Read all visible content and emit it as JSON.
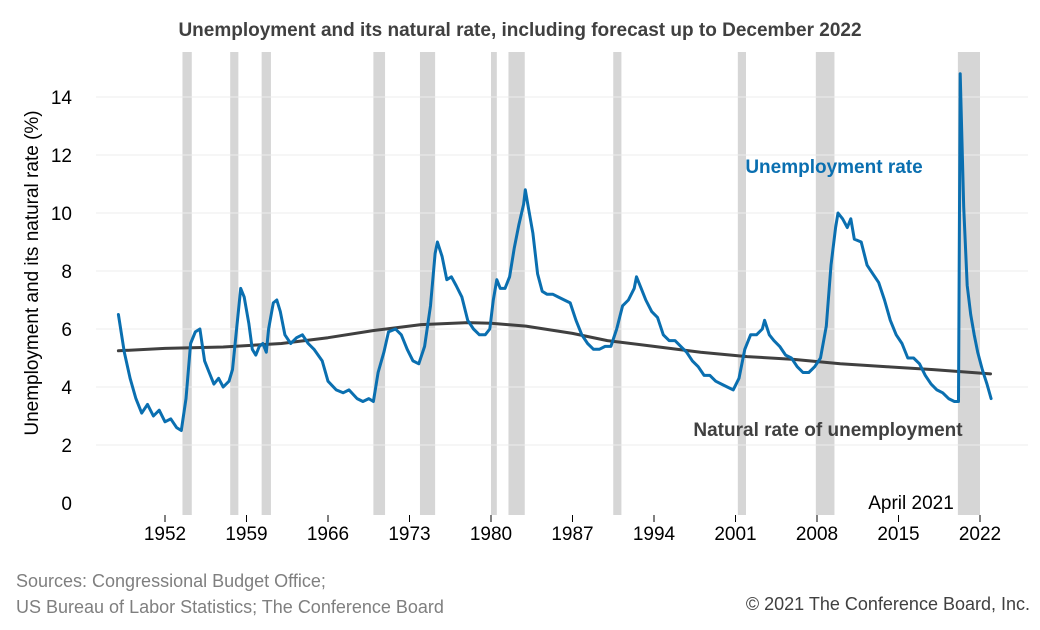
{
  "chart_data": {
    "type": "line",
    "title": "Unemployment and its natural rate, including forecast up to December 2022",
    "ylabel": "Unemployment and its natural rate (%)",
    "xlabel": "",
    "xlim": [
      1946.5,
      2024.5
    ],
    "ylim": [
      0,
      15
    ],
    "x_ticks": [
      1952,
      1959,
      1966,
      1973,
      1980,
      1987,
      1994,
      2001,
      2008,
      2015,
      2022
    ],
    "y_ticks": [
      0,
      2,
      4,
      6,
      8,
      10,
      12,
      14
    ],
    "grid": "horizontal",
    "recessions": [
      [
        1953.5,
        1954.3
      ],
      [
        1957.6,
        1958.3
      ],
      [
        1960.3,
        1961.1
      ],
      [
        1969.9,
        1970.9
      ],
      [
        1973.9,
        1975.2
      ],
      [
        1980.0,
        1980.5
      ],
      [
        1981.5,
        1982.9
      ],
      [
        1990.5,
        1991.2
      ],
      [
        2001.2,
        2001.9
      ],
      [
        2007.9,
        2009.5
      ],
      [
        2020.1,
        2022.0
      ]
    ],
    "series": [
      {
        "name": "Unemployment rate",
        "color": "#0a6fb0",
        "points": [
          [
            1948.0,
            6.5
          ],
          [
            1948.5,
            5.2
          ],
          [
            1949.0,
            4.3
          ],
          [
            1949.5,
            3.6
          ],
          [
            1950.0,
            3.1
          ],
          [
            1950.5,
            3.4
          ],
          [
            1951.0,
            3.0
          ],
          [
            1951.5,
            3.2
          ],
          [
            1952.0,
            2.8
          ],
          [
            1952.5,
            2.9
          ],
          [
            1953.0,
            2.6
          ],
          [
            1953.4,
            2.5
          ],
          [
            1953.8,
            3.6
          ],
          [
            1954.2,
            5.5
          ],
          [
            1954.6,
            5.9
          ],
          [
            1955.0,
            6.0
          ],
          [
            1955.4,
            4.9
          ],
          [
            1955.8,
            4.5
          ],
          [
            1956.2,
            4.1
          ],
          [
            1956.6,
            4.3
          ],
          [
            1957.0,
            4.0
          ],
          [
            1957.5,
            4.2
          ],
          [
            1957.8,
            4.6
          ],
          [
            1958.1,
            5.8
          ],
          [
            1958.5,
            7.4
          ],
          [
            1958.8,
            7.1
          ],
          [
            1959.2,
            6.2
          ],
          [
            1959.5,
            5.3
          ],
          [
            1959.8,
            5.1
          ],
          [
            1960.1,
            5.4
          ],
          [
            1960.4,
            5.5
          ],
          [
            1960.7,
            5.2
          ],
          [
            1960.9,
            6.0
          ],
          [
            1961.3,
            6.9
          ],
          [
            1961.6,
            7.0
          ],
          [
            1961.9,
            6.6
          ],
          [
            1962.3,
            5.8
          ],
          [
            1962.8,
            5.5
          ],
          [
            1963.3,
            5.7
          ],
          [
            1963.8,
            5.8
          ],
          [
            1964.3,
            5.5
          ],
          [
            1964.8,
            5.3
          ],
          [
            1965.5,
            4.9
          ],
          [
            1966.0,
            4.2
          ],
          [
            1966.7,
            3.9
          ],
          [
            1967.3,
            3.8
          ],
          [
            1967.8,
            3.9
          ],
          [
            1968.5,
            3.6
          ],
          [
            1969.0,
            3.5
          ],
          [
            1969.5,
            3.6
          ],
          [
            1969.9,
            3.5
          ],
          [
            1970.3,
            4.5
          ],
          [
            1970.8,
            5.2
          ],
          [
            1971.2,
            5.9
          ],
          [
            1971.8,
            6.0
          ],
          [
            1972.3,
            5.8
          ],
          [
            1972.8,
            5.3
          ],
          [
            1973.3,
            4.9
          ],
          [
            1973.8,
            4.8
          ],
          [
            1974.3,
            5.4
          ],
          [
            1974.8,
            6.8
          ],
          [
            1975.2,
            8.6
          ],
          [
            1975.4,
            9.0
          ],
          [
            1975.8,
            8.5
          ],
          [
            1976.2,
            7.7
          ],
          [
            1976.6,
            7.8
          ],
          [
            1977.0,
            7.5
          ],
          [
            1977.5,
            7.1
          ],
          [
            1978.0,
            6.3
          ],
          [
            1978.5,
            6.0
          ],
          [
            1979.0,
            5.8
          ],
          [
            1979.5,
            5.8
          ],
          [
            1979.9,
            6.0
          ],
          [
            1980.2,
            7.0
          ],
          [
            1980.5,
            7.7
          ],
          [
            1980.8,
            7.4
          ],
          [
            1981.2,
            7.4
          ],
          [
            1981.6,
            7.8
          ],
          [
            1982.0,
            8.8
          ],
          [
            1982.4,
            9.6
          ],
          [
            1982.8,
            10.3
          ],
          [
            1982.95,
            10.8
          ],
          [
            1983.2,
            10.2
          ],
          [
            1983.6,
            9.3
          ],
          [
            1984.0,
            7.9
          ],
          [
            1984.4,
            7.3
          ],
          [
            1984.8,
            7.2
          ],
          [
            1985.3,
            7.2
          ],
          [
            1985.8,
            7.1
          ],
          [
            1986.3,
            7.0
          ],
          [
            1986.8,
            6.9
          ],
          [
            1987.3,
            6.3
          ],
          [
            1987.8,
            5.8
          ],
          [
            1988.3,
            5.5
          ],
          [
            1988.8,
            5.3
          ],
          [
            1989.3,
            5.3
          ],
          [
            1989.8,
            5.4
          ],
          [
            1990.3,
            5.4
          ],
          [
            1990.8,
            6.0
          ],
          [
            1991.3,
            6.8
          ],
          [
            1991.8,
            7.0
          ],
          [
            1992.3,
            7.4
          ],
          [
            1992.5,
            7.8
          ],
          [
            1992.9,
            7.4
          ],
          [
            1993.3,
            7.0
          ],
          [
            1993.8,
            6.6
          ],
          [
            1994.3,
            6.4
          ],
          [
            1994.8,
            5.8
          ],
          [
            1995.3,
            5.6
          ],
          [
            1995.8,
            5.6
          ],
          [
            1996.3,
            5.4
          ],
          [
            1996.8,
            5.2
          ],
          [
            1997.3,
            4.9
          ],
          [
            1997.8,
            4.7
          ],
          [
            1998.3,
            4.4
          ],
          [
            1998.8,
            4.4
          ],
          [
            1999.3,
            4.2
          ],
          [
            1999.8,
            4.1
          ],
          [
            2000.3,
            4.0
          ],
          [
            2000.8,
            3.9
          ],
          [
            2001.3,
            4.3
          ],
          [
            2001.8,
            5.3
          ],
          [
            2002.3,
            5.8
          ],
          [
            2002.8,
            5.8
          ],
          [
            2003.3,
            6.0
          ],
          [
            2003.5,
            6.3
          ],
          [
            2003.9,
            5.8
          ],
          [
            2004.3,
            5.6
          ],
          [
            2004.8,
            5.4
          ],
          [
            2005.3,
            5.1
          ],
          [
            2005.8,
            5.0
          ],
          [
            2006.3,
            4.7
          ],
          [
            2006.8,
            4.5
          ],
          [
            2007.3,
            4.5
          ],
          [
            2007.8,
            4.7
          ],
          [
            2008.3,
            5.0
          ],
          [
            2008.8,
            6.1
          ],
          [
            2009.2,
            8.2
          ],
          [
            2009.6,
            9.5
          ],
          [
            2009.8,
            10.0
          ],
          [
            2010.2,
            9.8
          ],
          [
            2010.6,
            9.5
          ],
          [
            2010.9,
            9.8
          ],
          [
            2011.2,
            9.1
          ],
          [
            2011.8,
            9.0
          ],
          [
            2012.3,
            8.2
          ],
          [
            2012.8,
            7.9
          ],
          [
            2013.3,
            7.6
          ],
          [
            2013.8,
            7.0
          ],
          [
            2014.3,
            6.3
          ],
          [
            2014.8,
            5.8
          ],
          [
            2015.3,
            5.5
          ],
          [
            2015.8,
            5.0
          ],
          [
            2016.3,
            5.0
          ],
          [
            2016.8,
            4.8
          ],
          [
            2017.3,
            4.4
          ],
          [
            2017.8,
            4.1
          ],
          [
            2018.3,
            3.9
          ],
          [
            2018.8,
            3.8
          ],
          [
            2019.3,
            3.6
          ],
          [
            2019.8,
            3.5
          ],
          [
            2020.15,
            3.5
          ],
          [
            2020.3,
            14.8
          ],
          [
            2020.6,
            10.2
          ],
          [
            2020.9,
            7.5
          ],
          [
            2021.2,
            6.5
          ],
          [
            2021.5,
            5.8
          ],
          [
            2021.8,
            5.2
          ],
          [
            2022.2,
            4.6
          ],
          [
            2022.6,
            4.1
          ],
          [
            2022.95,
            3.6
          ]
        ]
      },
      {
        "name": "Natural rate of unemployment",
        "color": "#404040",
        "points": [
          [
            1948,
            5.25
          ],
          [
            1952,
            5.33
          ],
          [
            1957,
            5.38
          ],
          [
            1962,
            5.5
          ],
          [
            1966,
            5.7
          ],
          [
            1970,
            5.95
          ],
          [
            1974,
            6.15
          ],
          [
            1978,
            6.22
          ],
          [
            1980,
            6.2
          ],
          [
            1983,
            6.1
          ],
          [
            1987,
            5.85
          ],
          [
            1990,
            5.6
          ],
          [
            1994,
            5.4
          ],
          [
            1998,
            5.2
          ],
          [
            2002,
            5.05
          ],
          [
            2006,
            4.95
          ],
          [
            2010,
            4.8
          ],
          [
            2014,
            4.7
          ],
          [
            2018,
            4.6
          ],
          [
            2022.9,
            4.45
          ]
        ]
      }
    ],
    "annotations": {
      "unemployment": "Unemployment rate",
      "natural": "Natural rate of unemployment",
      "april": "April 2021"
    }
  },
  "footer": {
    "source_line1": "Sources: Congressional Budget Office;",
    "source_line2": "US Bureau of Labor Statistics; The Conference Board",
    "copyright": "© 2021 The Conference Board, Inc."
  }
}
